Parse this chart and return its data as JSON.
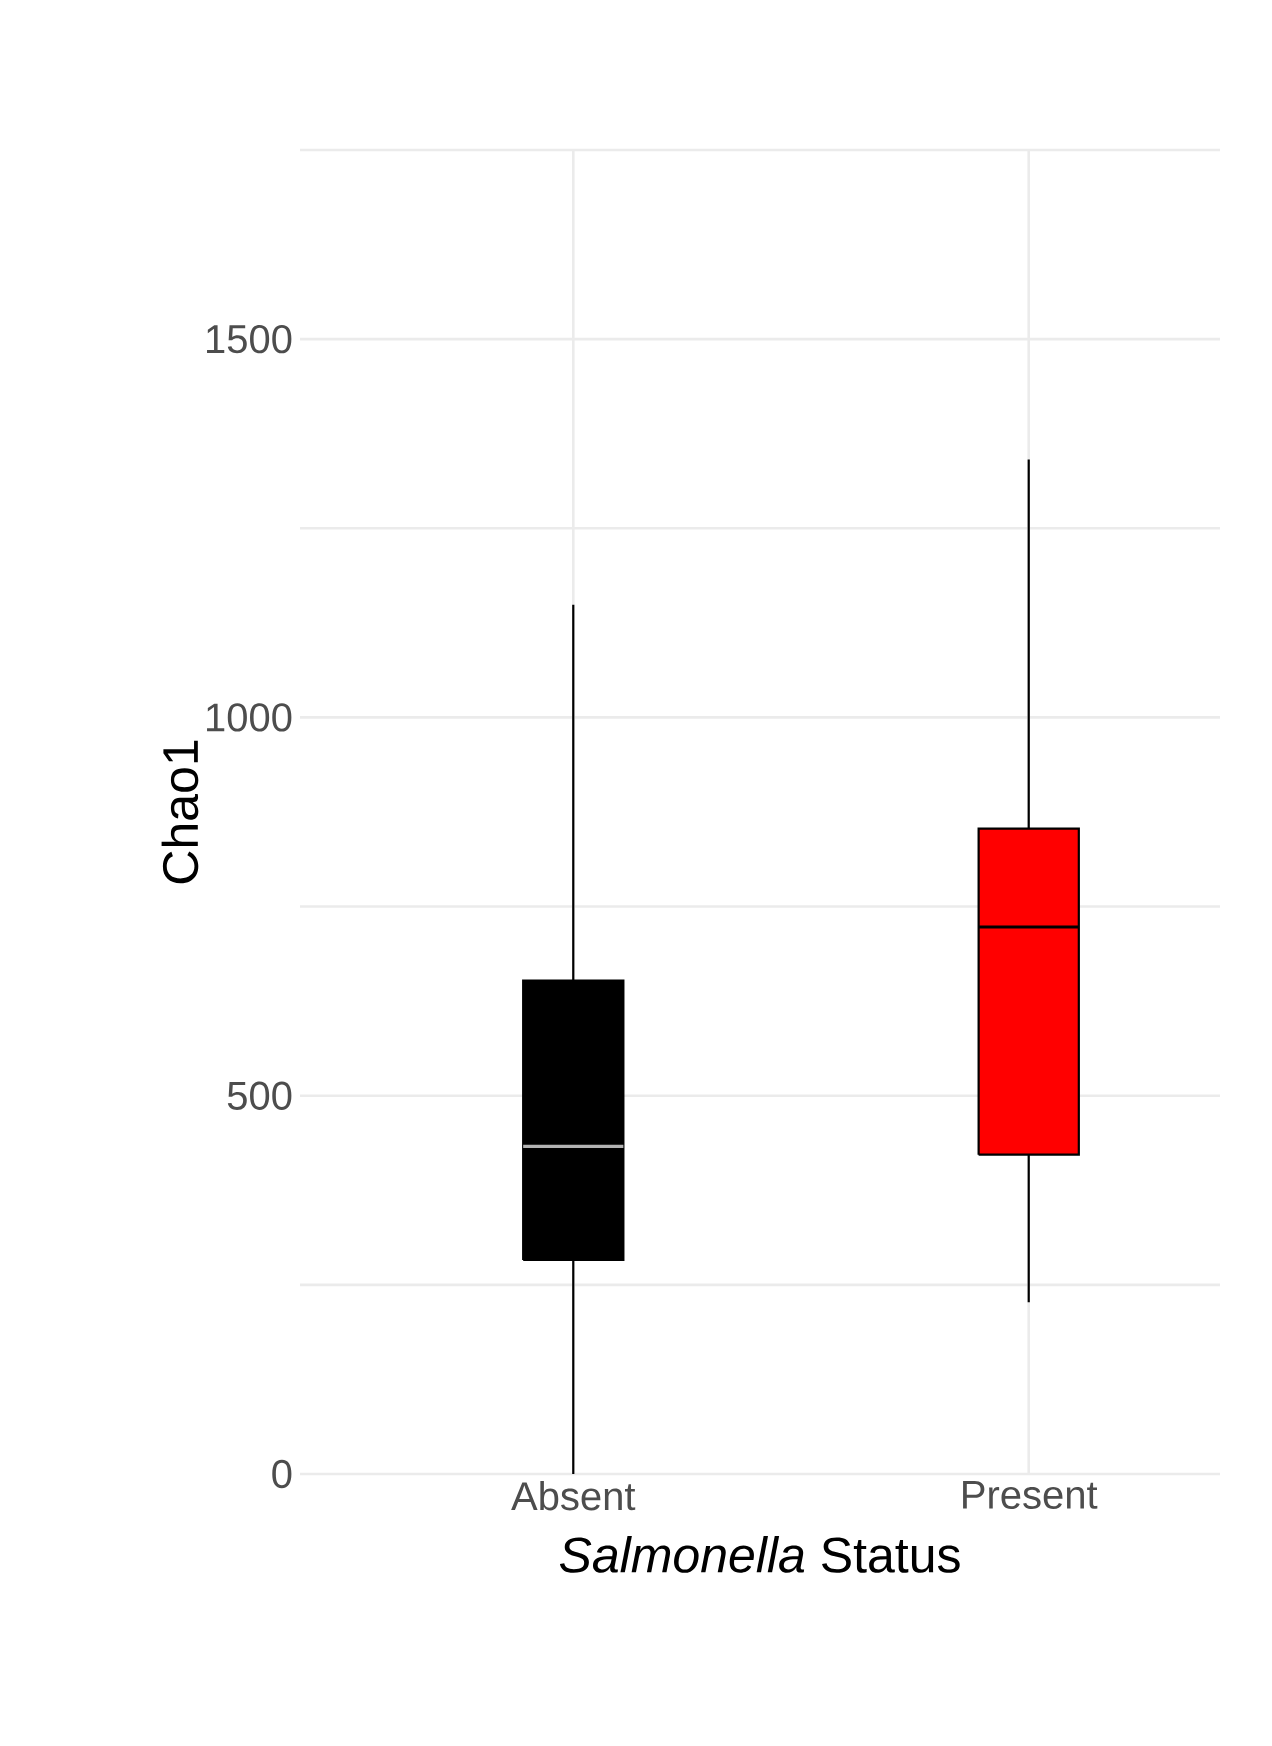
{
  "chart_data": {
    "type": "box",
    "xlabel": "*Salmonella* Status",
    "ylabel": "Chao1",
    "categories": [
      "Absent",
      "Present"
    ],
    "boxes": [
      {
        "low": 0,
        "q1": 283,
        "median": 433,
        "q3": 652,
        "high": 1149
      },
      {
        "low": 227,
        "q1": 422,
        "median": 723,
        "q3": 853,
        "high": 1341
      }
    ],
    "colors": [
      "#000000",
      "#ff0000"
    ],
    "ylim": [
      0,
      1750
    ],
    "yticks": [
      0,
      {
        "value": 250,
        "label": null
      },
      500,
      {
        "value": 750,
        "label": null
      },
      1000,
      {
        "value": 1250,
        "label": null
      },
      1500,
      {
        "value": 1750,
        "label": null
      }
    ],
    "grid": true
  }
}
